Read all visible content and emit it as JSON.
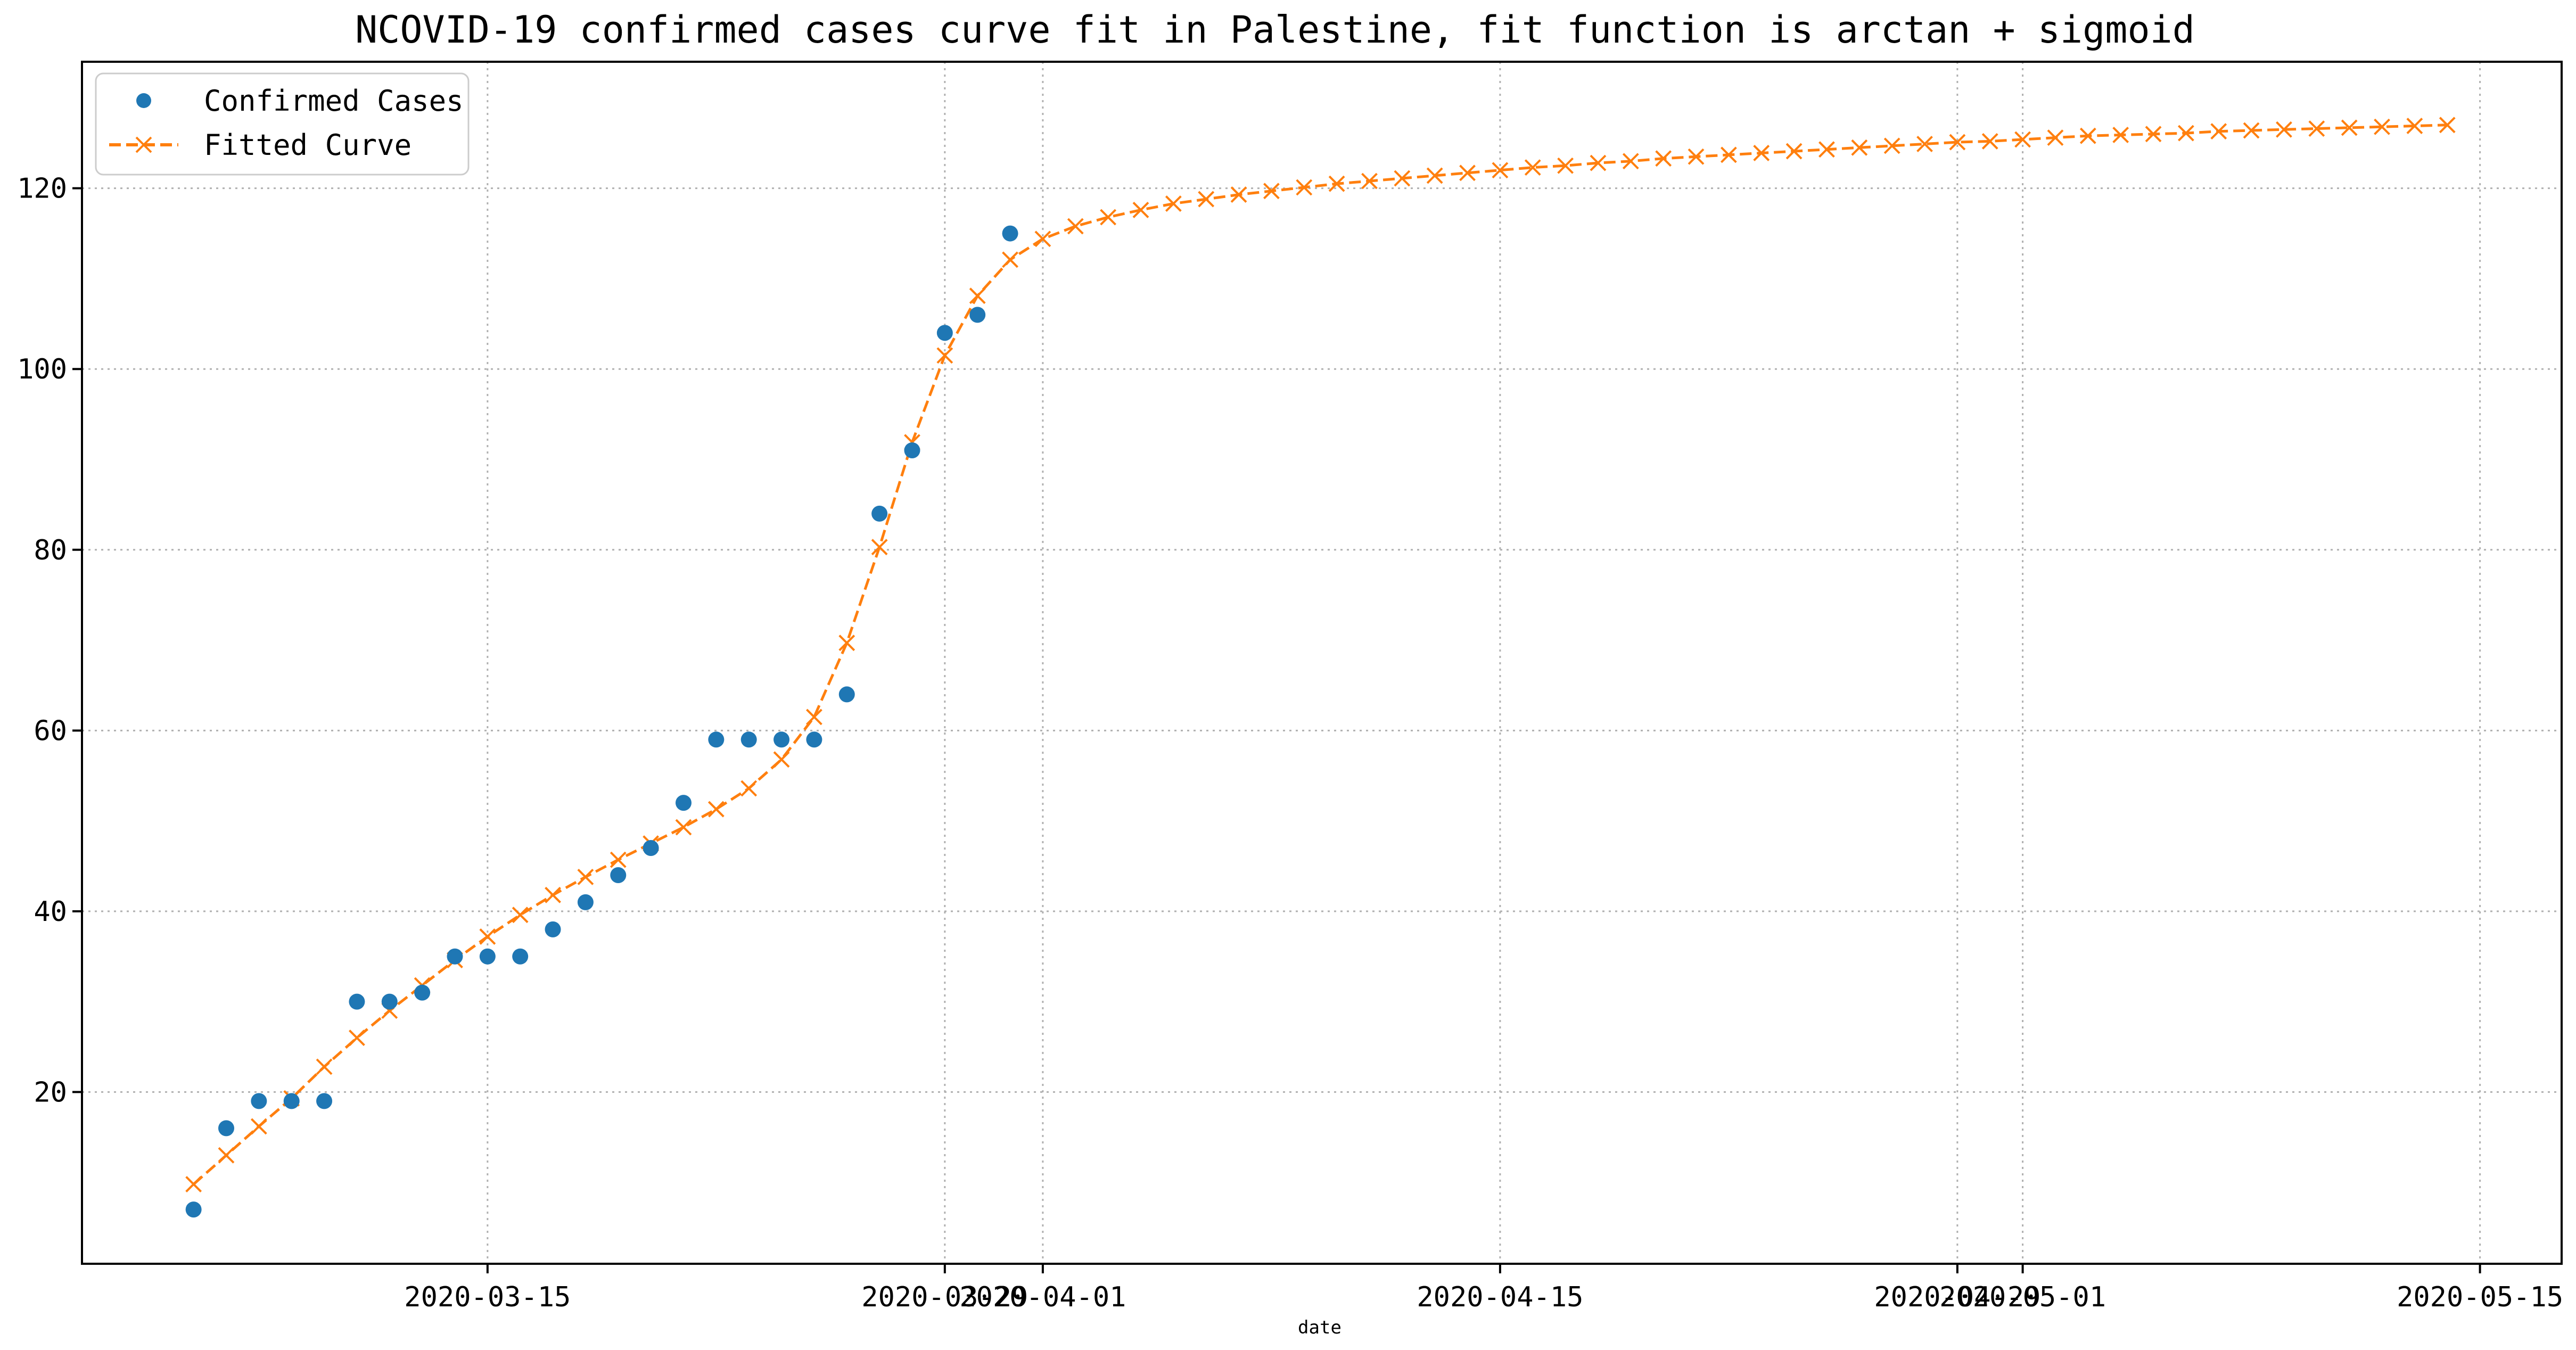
{
  "chart_data": {
    "type": "line",
    "title": "NCOVID-19 confirmed cases curve fit in Palestine, fit function is arctan + sigmoid",
    "xlabel": "date",
    "ylabel": "",
    "x_start": "2020-03-06",
    "x_tick_labels": [
      {
        "date": "2020-03-15",
        "label": "2020-03-15"
      },
      {
        "date": "2020-03-29",
        "label": "2020-03-29"
      },
      {
        "date": "2020-04-01",
        "label": "2020-04-01"
      },
      {
        "date": "2020-04-15",
        "label": "2020-04-15"
      },
      {
        "date": "2020-04-29",
        "label": "2020-04-29"
      },
      {
        "date": "2020-05-01",
        "label": "2020-05-01"
      },
      {
        "date": "2020-05-15",
        "label": "2020-05-15"
      }
    ],
    "y_ticks": [
      20,
      40,
      60,
      80,
      100,
      120
    ],
    "xlim": [
      "2020-03-02T14:00",
      "2020-05-17T12:00"
    ],
    "ylim": [
      1,
      134
    ],
    "grid": true,
    "legend_position": "top-left",
    "series": [
      {
        "name": "Confirmed Cases",
        "color": "#1f77b4",
        "marker": "circle",
        "line": "none",
        "values": [
          7,
          16,
          19,
          19,
          19,
          30,
          30,
          31,
          35,
          35,
          35,
          38,
          41,
          44,
          47,
          52,
          59,
          59,
          59,
          59,
          64,
          84,
          91,
          104,
          106,
          115
        ]
      },
      {
        "name": "Fitted Curve",
        "color": "#ff7f0e",
        "marker": "x",
        "line": "dashed",
        "values": [
          9.8,
          13.0,
          16.2,
          19.3,
          22.8,
          26.0,
          29.0,
          31.8,
          34.6,
          37.2,
          39.6,
          41.8,
          43.8,
          45.7,
          47.5,
          49.3,
          51.3,
          53.6,
          56.8,
          61.5,
          69.7,
          80.3,
          91.9,
          101.5,
          108.1,
          112.1,
          114.4,
          115.8,
          116.8,
          117.6,
          118.3,
          118.8,
          119.3,
          119.7,
          120.1,
          120.5,
          120.8,
          121.1,
          121.4,
          121.7,
          122.0,
          122.3,
          122.5,
          122.8,
          123.0,
          123.3,
          123.5,
          123.7,
          123.9,
          124.1,
          124.3,
          124.5,
          124.7,
          124.9,
          125.1,
          125.2,
          125.4,
          125.6,
          125.8,
          125.9,
          126.0,
          126.1,
          126.3,
          126.4,
          126.5,
          126.6,
          126.7,
          126.8,
          126.9,
          127.0
        ]
      }
    ]
  }
}
